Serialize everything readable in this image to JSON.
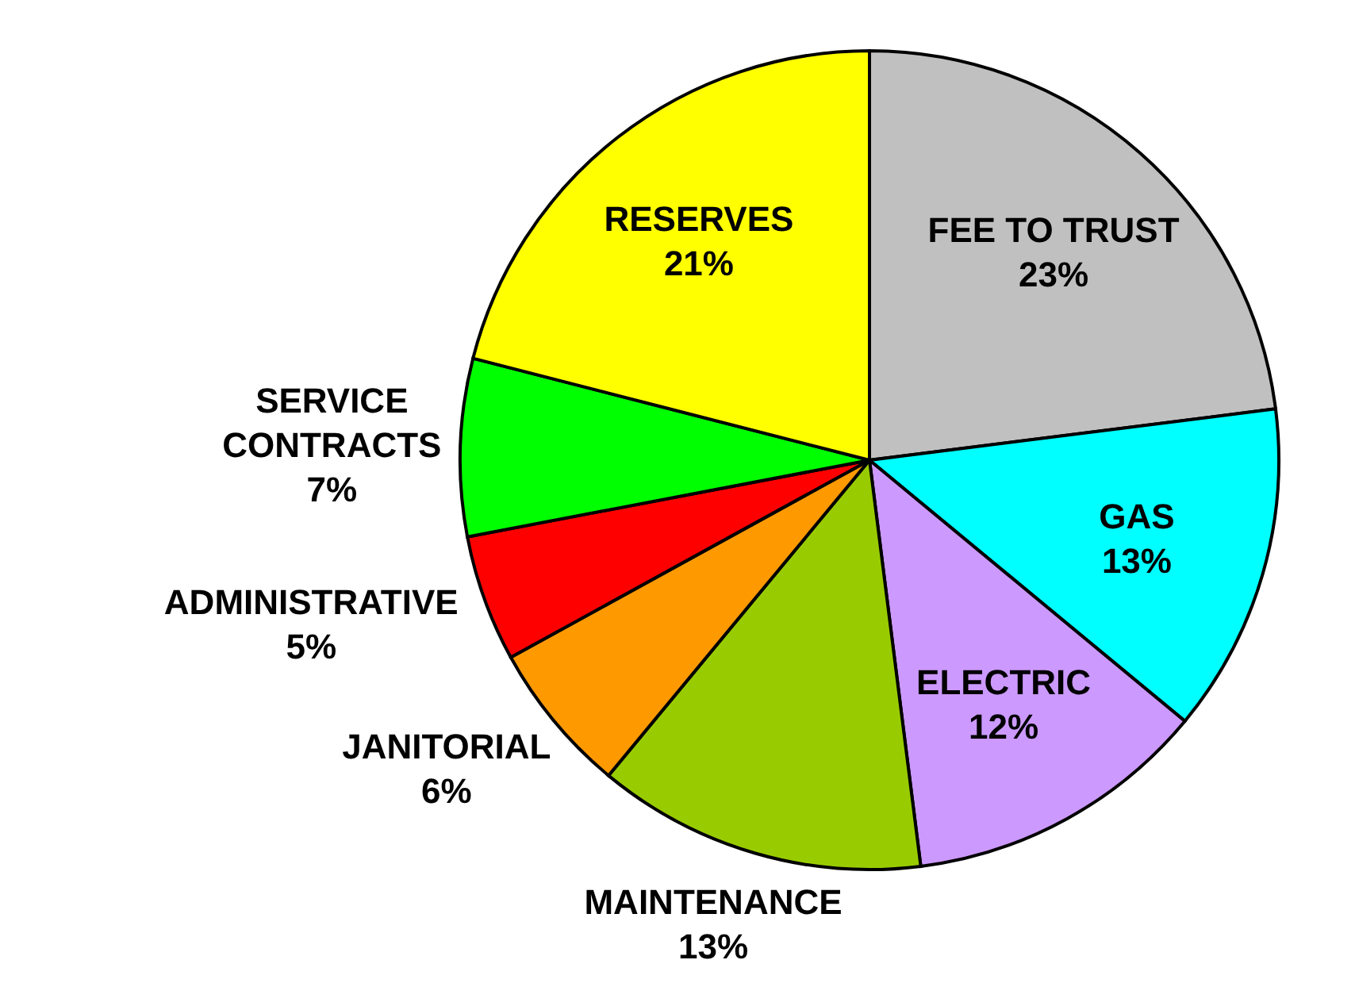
{
  "chart_data": {
    "type": "pie",
    "categories": [
      "FEE TO TRUST",
      "GAS",
      "ELECTRIC",
      "MAINTENANCE",
      "JANITORIAL",
      "ADMINISTRATIVE",
      "SERVICE CONTRACTS",
      "RESERVES"
    ],
    "values": [
      23,
      13,
      12,
      13,
      6,
      5,
      7,
      21
    ],
    "colors": [
      "#c0c0c0",
      "#00ffff",
      "#cc99ff",
      "#99cc00",
      "#ff9900",
      "#ff0000",
      "#00ff00",
      "#ffff00"
    ],
    "value_labels": [
      "23%",
      "13%",
      "12%",
      "13%",
      "6%",
      "5%",
      "7%",
      "21%"
    ],
    "legend": false
  }
}
